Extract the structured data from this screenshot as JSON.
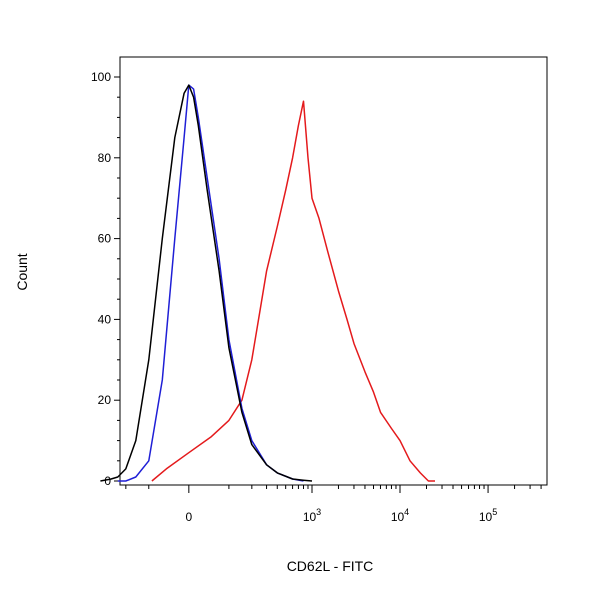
{
  "chart_data": {
    "type": "line",
    "title": "",
    "xlabel": "CD62L - FITC",
    "ylabel": "Count",
    "x_scale": "biexponential",
    "xlim": [
      -1000,
      350000
    ],
    "ylim": [
      0,
      100
    ],
    "y_ticks": [
      "0",
      "20",
      "40",
      "60",
      "80",
      "100"
    ],
    "x_ticks": [
      {
        "value": 0,
        "base": "0",
        "exp": ""
      },
      {
        "value": 1000,
        "base": "10",
        "exp": "3"
      },
      {
        "value": 10000,
        "base": "10",
        "exp": "4"
      },
      {
        "value": 100000,
        "base": "10",
        "exp": "5"
      }
    ],
    "grid": false,
    "legend": "none",
    "series": [
      {
        "color": "#e41a1c",
        "x": [
          -90,
          -50,
          0,
          50,
          100,
          150,
          200,
          250,
          300,
          400,
          500,
          600,
          700,
          800,
          900,
          1000,
          1200,
          1500,
          2000,
          2500,
          3000,
          4000,
          5000,
          6000,
          8000,
          10000,
          13000,
          17000,
          21000,
          25000
        ],
        "y": [
          0,
          3,
          7,
          11,
          15,
          20,
          30,
          42,
          52,
          63,
          72,
          80,
          88,
          94,
          80,
          70,
          65,
          57,
          47,
          40,
          34,
          27,
          22,
          17,
          13,
          10,
          5,
          2,
          0,
          0
        ]
      },
      {
        "color": "#1f1fd6",
        "x": [
          -250,
          -200,
          -150,
          -100,
          -60,
          -30,
          -10,
          0,
          10,
          20,
          40,
          70,
          100,
          150,
          200,
          300,
          400,
          600,
          800
        ],
        "y": [
          0,
          0,
          1,
          5,
          25,
          60,
          85,
          98,
          97,
          90,
          75,
          55,
          35,
          18,
          10,
          4,
          2,
          0.5,
          0
        ]
      },
      {
        "color": "#000000",
        "x": [
          -400,
          -300,
          -250,
          -200,
          -150,
          -100,
          -60,
          -30,
          -10,
          0,
          10,
          20,
          40,
          70,
          100,
          150,
          200,
          300,
          400,
          600,
          800,
          1000
        ],
        "y": [
          0,
          0.5,
          1,
          3,
          10,
          30,
          60,
          85,
          96,
          98,
          95,
          88,
          72,
          52,
          33,
          17,
          9,
          4,
          2,
          0.5,
          0.2,
          0
        ]
      }
    ]
  }
}
